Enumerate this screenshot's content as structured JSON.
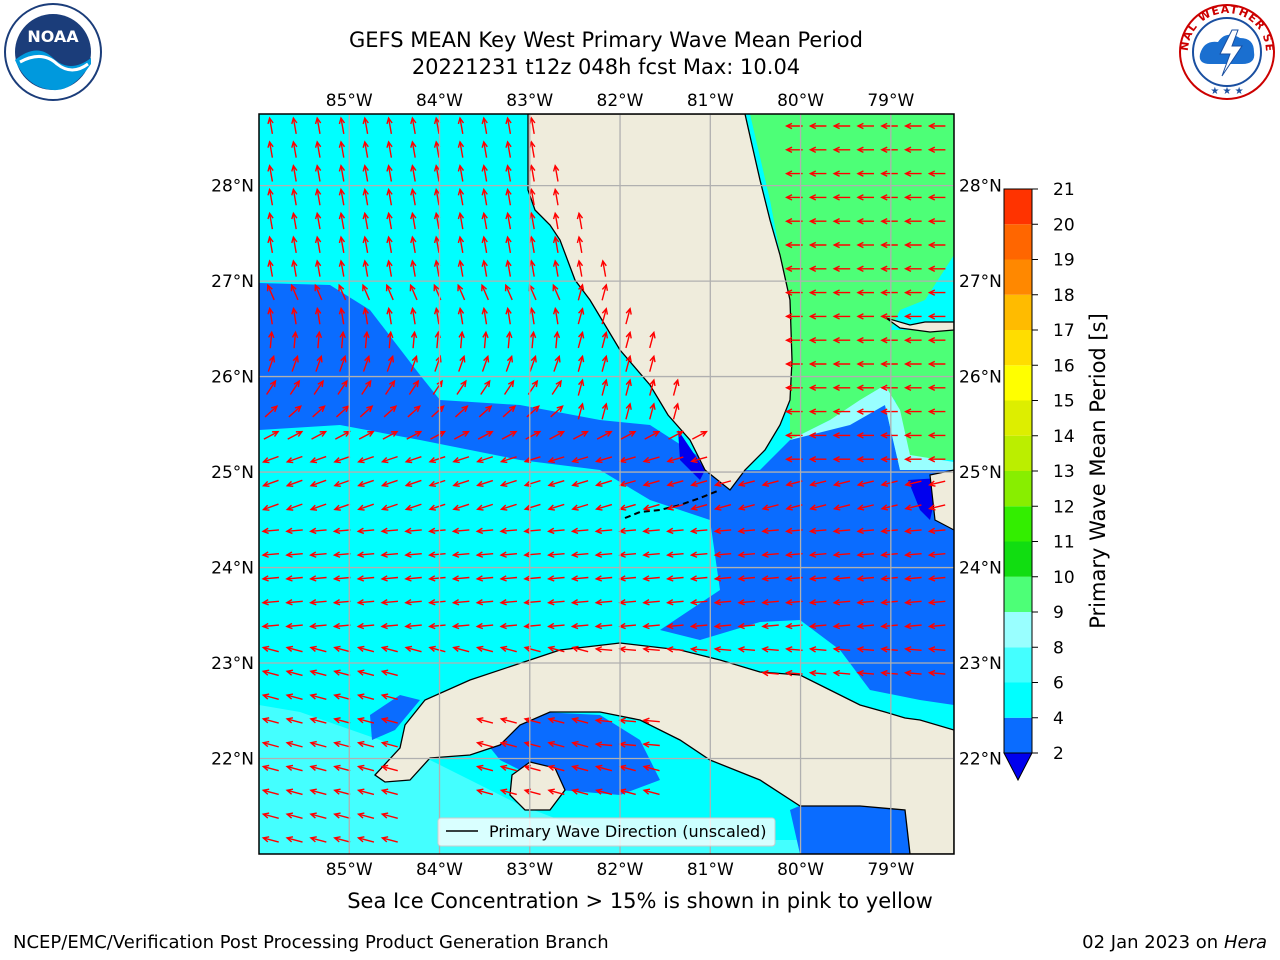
{
  "title": {
    "line1": "GEFS MEAN Key West Primary Wave Mean Period",
    "line2": "20221231 t12z 048h fcst   Max: 10.04"
  },
  "chart_data": {
    "type": "heatmap",
    "variable": "Primary Wave Mean Period",
    "max_value": 10.04,
    "lon_ticks": [
      "85°W",
      "84°W",
      "83°W",
      "82°W",
      "81°W",
      "80°W",
      "79°W"
    ],
    "lat_ticks": [
      "28°N",
      "27°N",
      "26°N",
      "25°N",
      "24°N",
      "23°N",
      "22°N"
    ],
    "extent": {
      "lon": [
        -86.0,
        -78.3
      ],
      "lat": [
        21.0,
        28.75
      ]
    },
    "colorbar": {
      "label": "Primary Wave Mean Period [s]",
      "levels": [
        2,
        4,
        6,
        8,
        9,
        10,
        11,
        12,
        13,
        14,
        15,
        16,
        17,
        18,
        19,
        20,
        21
      ],
      "colors": [
        "#0a6cff",
        "#00ffff",
        "#44ffff",
        "#99ffff",
        "#4dff77",
        "#11dd11",
        "#33ee00",
        "#88ee00",
        "#bbee00",
        "#ddee00",
        "#ffff00",
        "#ffdd00",
        "#ffbb00",
        "#ff8800",
        "#ff6600",
        "#ff3300"
      ],
      "under_color": "#0000ee"
    },
    "legend": {
      "label": "Primary Wave Direction (unscaled)",
      "placement": "lower-center"
    },
    "arrow_color": "#ff0000"
  },
  "ice_note": "Sea Ice Concentration > 15% is shown in pink to yellow",
  "credits": {
    "left": "NCEP/EMC/Verification Post Processing Product Generation Branch",
    "right_date": "02 Jan 2023 on ",
    "right_host": "Hera"
  },
  "logos": {
    "noaa_text": "NOAA",
    "nws_text": "NATIONAL WEATHER SERVICE"
  }
}
